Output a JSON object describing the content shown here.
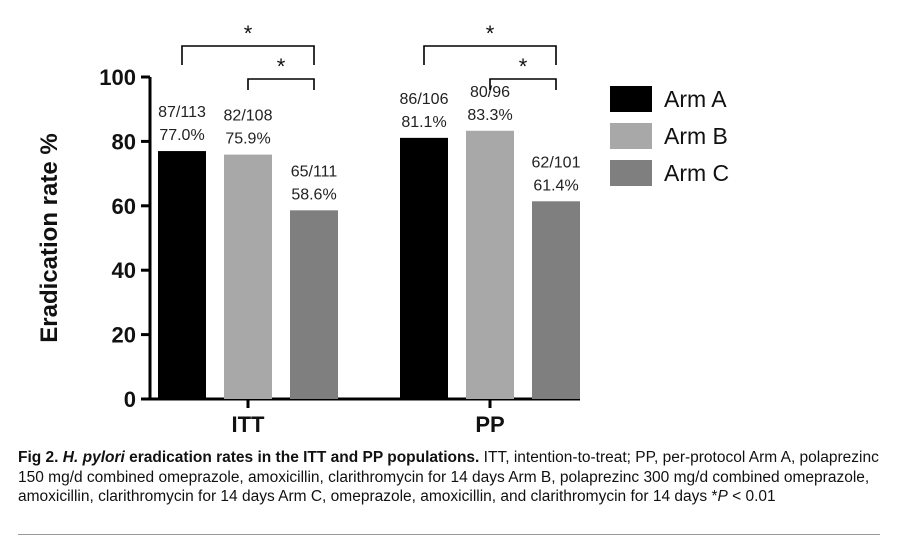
{
  "chart_data": {
    "type": "bar",
    "ylabel": "Eradication rate %",
    "ylim": [
      0,
      100
    ],
    "yticks": [
      0,
      20,
      40,
      60,
      80,
      100
    ],
    "categories": [
      "ITT",
      "PP"
    ],
    "series": [
      {
        "name": "Arm A",
        "color": "#000000",
        "values": [
          77.0,
          81.1
        ],
        "labels": [
          "87/113",
          "86/106"
        ],
        "pct_labels": [
          "77.0%",
          "81.1%"
        ]
      },
      {
        "name": "Arm B",
        "color": "#a8a8a8",
        "values": [
          75.9,
          83.3
        ],
        "labels": [
          "82/108",
          "80/96"
        ],
        "pct_labels": [
          "75.9%",
          "83.3%"
        ]
      },
      {
        "name": "Arm C",
        "color": "#7f7f7f",
        "values": [
          58.6,
          61.4
        ],
        "labels": [
          "65/111",
          "62/101"
        ],
        "pct_labels": [
          "58.6%",
          "61.4%"
        ]
      }
    ],
    "significance": [
      {
        "category": 0,
        "from_series": 0,
        "to_series": 2,
        "label": "*"
      },
      {
        "category": 0,
        "from_series": 1,
        "to_series": 2,
        "label": "*"
      },
      {
        "category": 1,
        "from_series": 0,
        "to_series": 2,
        "label": "*"
      },
      {
        "category": 1,
        "from_series": 1,
        "to_series": 2,
        "label": "*"
      }
    ],
    "legend_position": "right"
  },
  "caption": {
    "fig_label": "Fig 2.",
    "title_italic": "H. pylori",
    "title_rest": " eradication rates in the ITT and PP populations.",
    "body": " ITT, intention-to-treat; PP, per-protocol Arm A, polaprezinc 150 mg/d combined omeprazole, amoxicillin, clarithromycin for 14 days Arm B, polaprezinc 300 mg/d combined omeprazole, amoxicillin, clarithromycin for 14 days Arm C, omeprazole, amoxicillin, and clarithromycin for 14 days *",
    "p_symbol": "P",
    "p_value": " < 0.01"
  }
}
